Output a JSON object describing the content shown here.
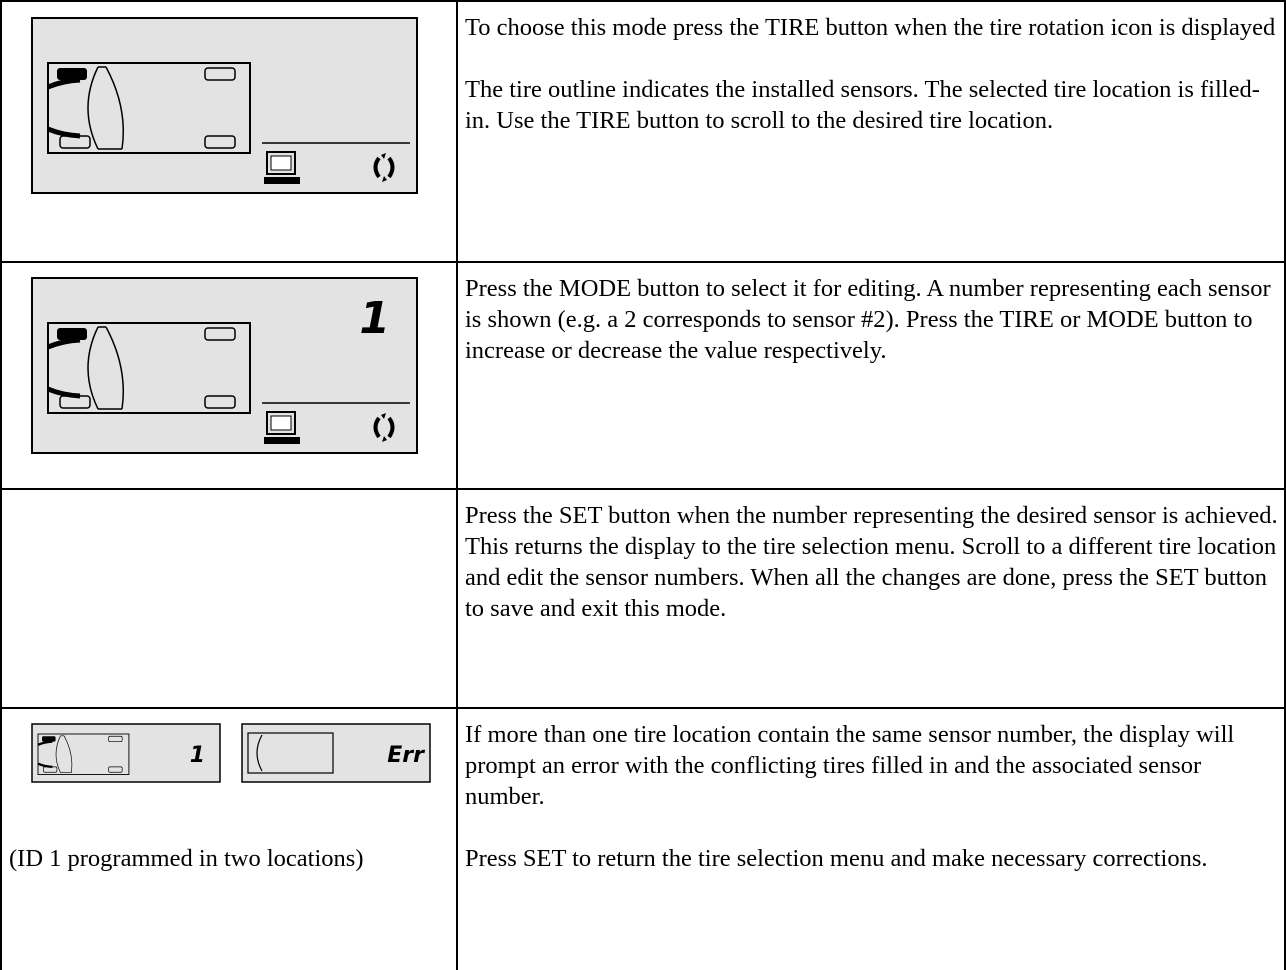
{
  "rows": [
    {
      "text": [
        "To choose this mode press the TIRE button when the tire rotation icon is displayed",
        "The tire outline indicates the installed sensors.  The selected tire location is filled-in.  Use the TIRE button to scroll to the desired tire location."
      ]
    },
    {
      "display_digit": "1",
      "text": [
        "Press the MODE button to select it for editing.  A number representing each sensor is shown (e.g. a 2 corresponds to sensor #2).  Press the TIRE or MODE button to increase or decrease the value respectively."
      ]
    },
    {
      "text": [
        "Press the SET button when the number representing the desired sensor is achieved.  This returns the display to the tire selection menu.  Scroll to a different tire location and edit the sensor numbers.  When all the changes are done, press the SET button to save and exit this mode."
      ]
    },
    {
      "display_digits": [
        "1",
        "Err"
      ],
      "caption": "(ID 1 programmed in two locations)",
      "text": [
        "If more than one tire location contain the same sensor number, the display will prompt an error with the conflicting tires filled in and the associated sensor number.",
        "Press SET to return the tire selection menu and make necessary corrections."
      ]
    }
  ]
}
